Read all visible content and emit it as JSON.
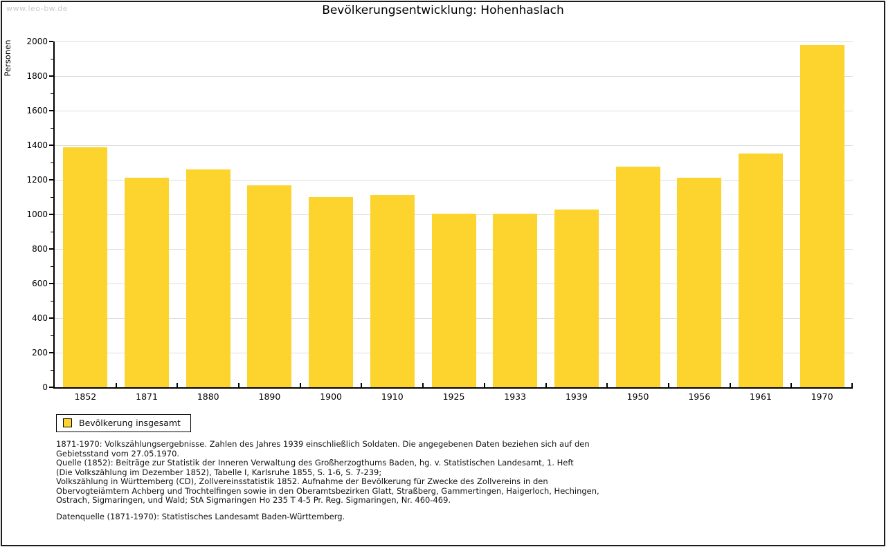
{
  "watermark": "www.leo-bw.de",
  "title": "Bevölkerungsentwicklung: Hohenhaslach",
  "legend": {
    "label": "Bevölkerung insgesamt"
  },
  "footnote": {
    "block": "1871-1970: Volkszählungsergebnisse. Zahlen des Jahres 1939 einschließlich Soldaten. Die angegebenen Daten beziehen sich auf den\nGebietsstand vom 27.05.1970.\nQuelle (1852): Beiträge zur Statistik der Inneren Verwaltung des Großherzogthums Baden, hg. v. Statistischen Landesamt, 1. Heft\n(Die Volkszählung im Dezember 1852), Tabelle I, Karlsruhe 1855, S. 1-6, S. 7-239;\nVolkszählung in Württemberg (CD), Zollvereinsstatistik 1852. Aufnahme der Bevölkerung für Zwecke des Zollvereins in den\nObervogteiämtern Achberg und Trochtelfingen sowie in den Oberamtsbezirken Glatt, Straßberg, Gammertingen, Haigerloch, Hechingen,\nOstrach, Sigmaringen, und Wald; StA Sigmaringen Ho 235 T 4-5 Pr. Reg. Sigmaringen, Nr. 460-469.",
    "datasource": "Datenquelle (1871-1970): Statistisches Landesamt Baden-Württemberg."
  },
  "colors": {
    "bar": "#FDD32E",
    "grid": "#dcdcdc",
    "axis": "#000000",
    "watermark": "#c9c9c9"
  },
  "chart_data": {
    "type": "bar",
    "title": "Bevölkerungsentwicklung: Hohenhaslach",
    "xlabel": "",
    "ylabel": "Personen",
    "categories": [
      "1852",
      "1871",
      "1880",
      "1890",
      "1900",
      "1910",
      "1925",
      "1933",
      "1939",
      "1950",
      "1956",
      "1961",
      "1970"
    ],
    "values": [
      1387,
      1211,
      1259,
      1168,
      1102,
      1112,
      1004,
      1006,
      1030,
      1275,
      1214,
      1353,
      1980
    ],
    "series_name": "Bevölkerung insgesamt",
    "ylim": [
      0,
      2000
    ],
    "ytick_major_step": 200,
    "ytick_minor_step": 100,
    "grid": true,
    "legend_position": "bottom-left",
    "bar_color": "#FDD32E"
  }
}
